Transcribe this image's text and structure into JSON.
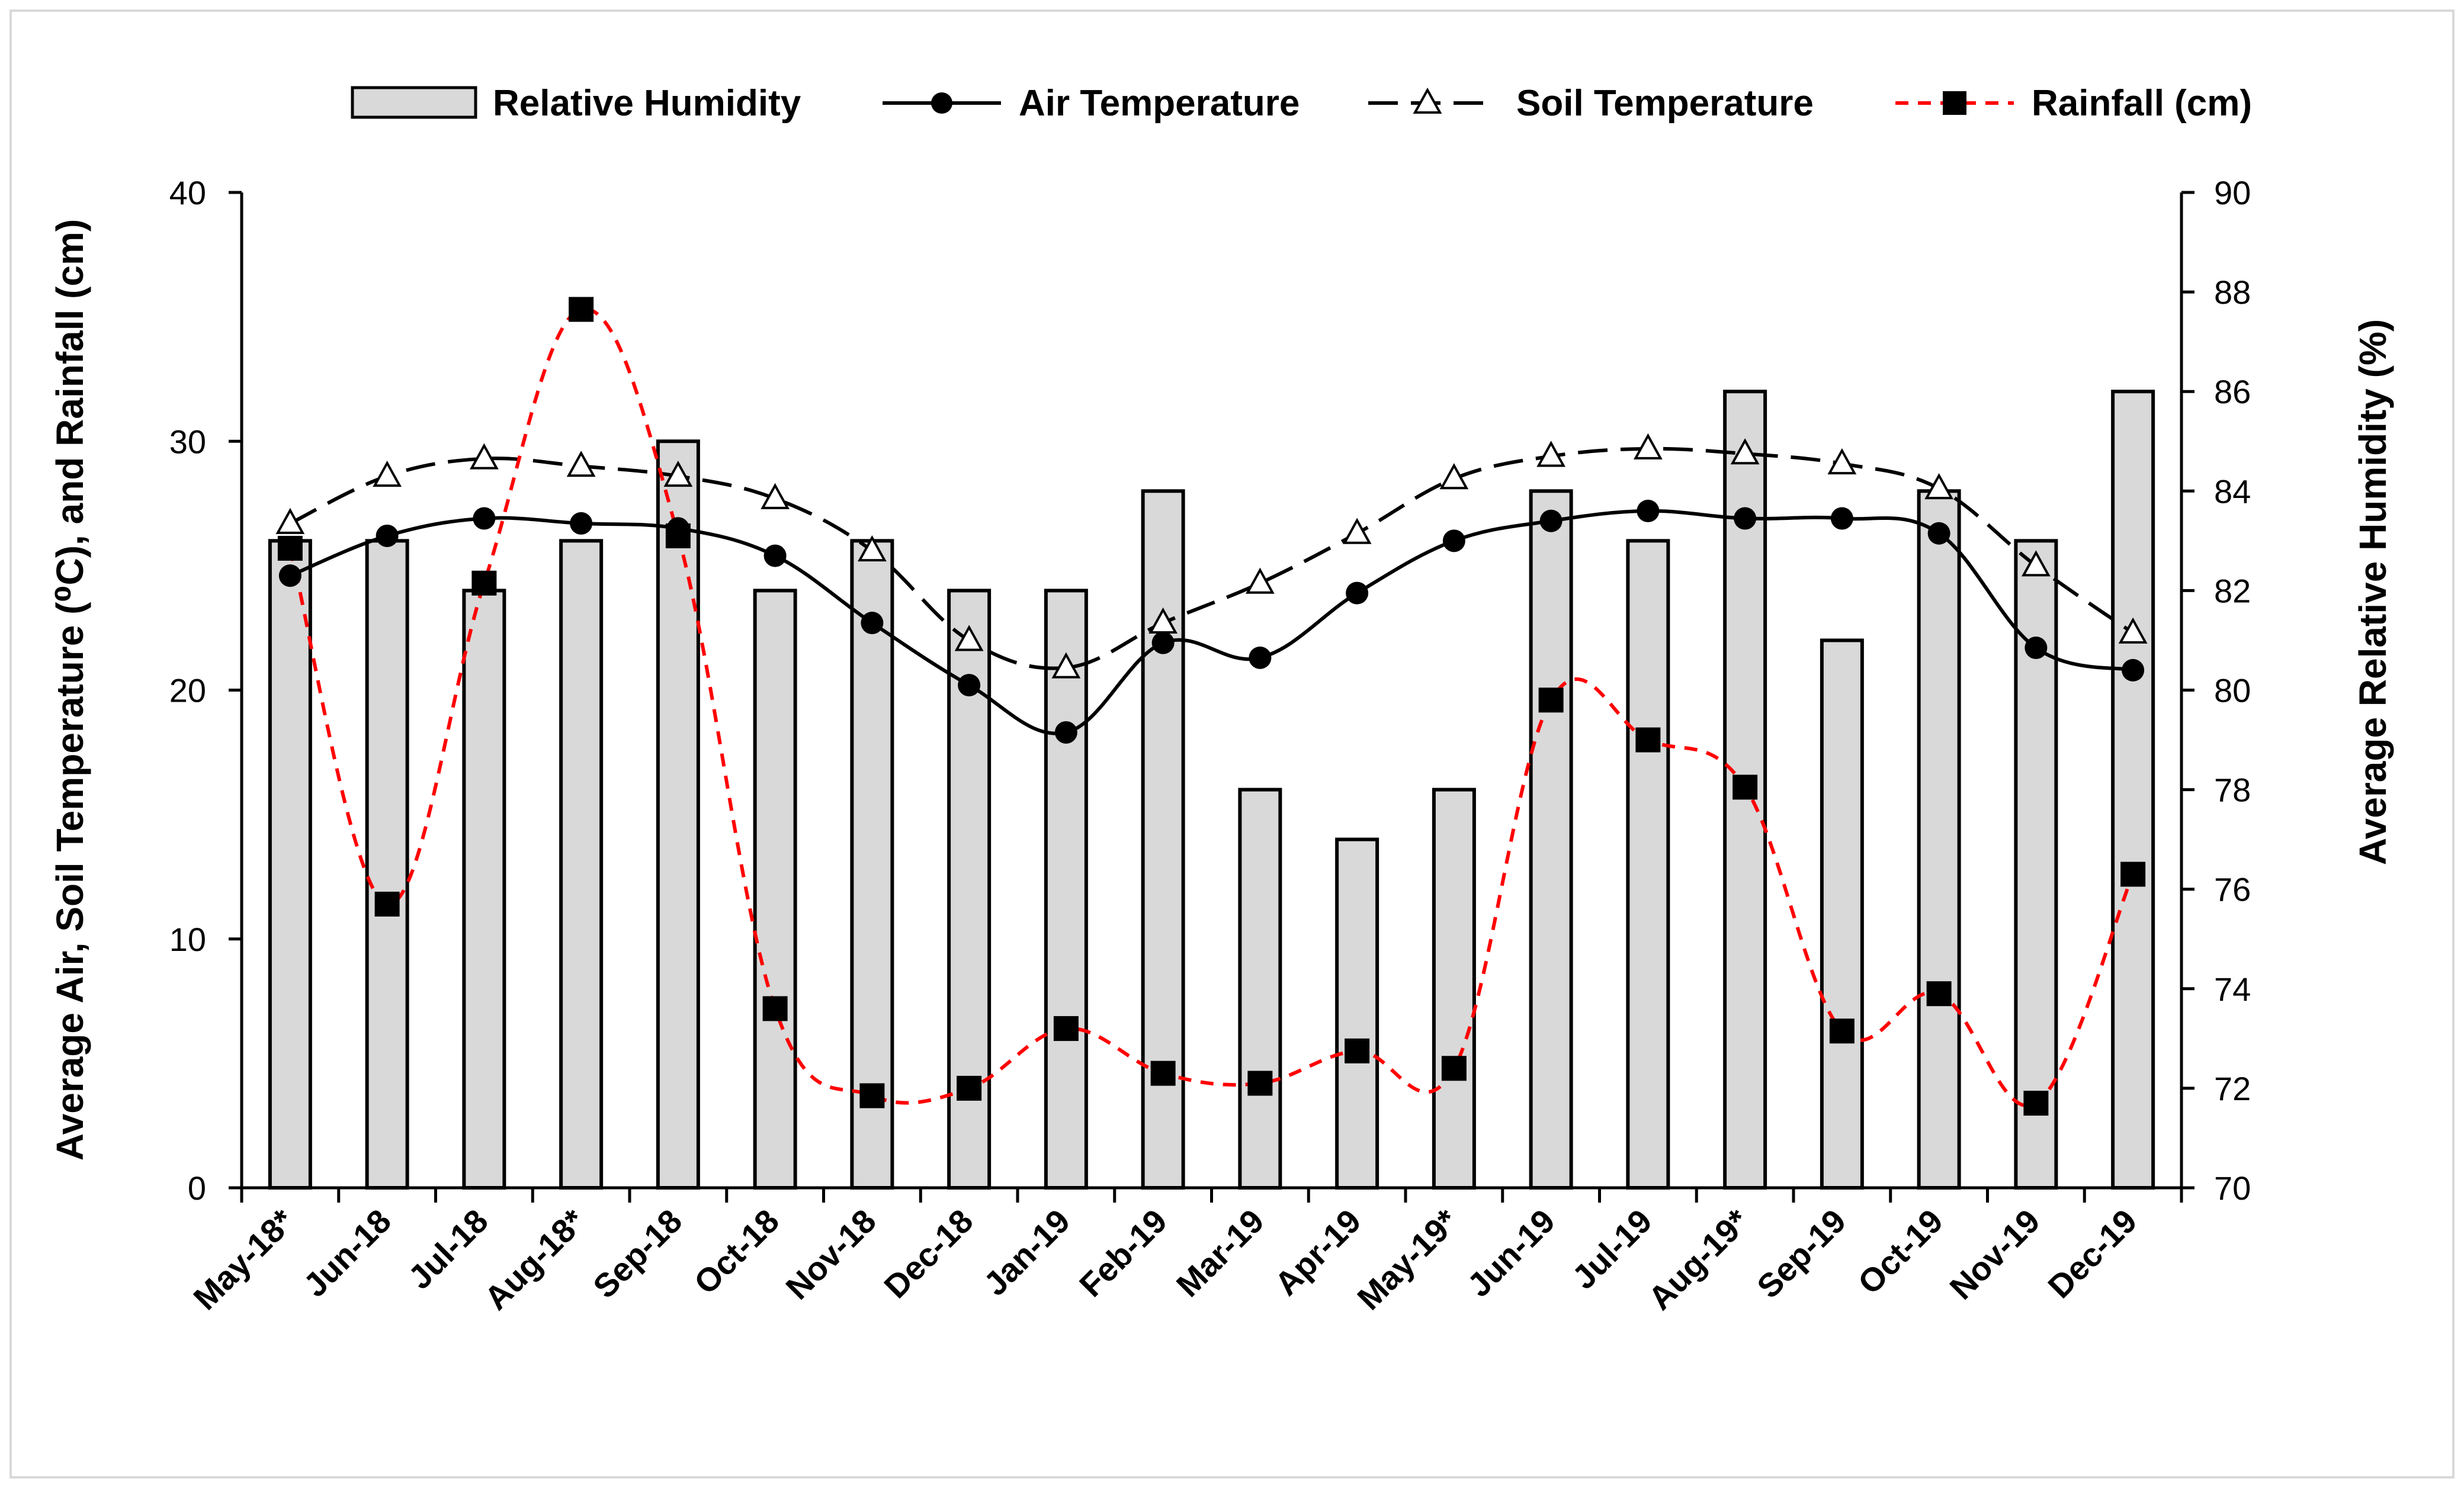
{
  "chart_data": {
    "type": "bar+line",
    "categories": [
      "May-18*",
      "Jun-18",
      "Jul-18",
      "Aug-18*",
      "Sep-18",
      "Oct-18",
      "Nov-18",
      "Dec-18",
      "Jan-19",
      "Feb-19",
      "Mar-19",
      "Apr-19",
      "May-19*",
      "Jun-19",
      "Jul-19",
      "Aug-19*",
      "Sep-19",
      "Oct-19",
      "Nov-19",
      "Dec-19"
    ],
    "series": [
      {
        "name": "Relative Humidity",
        "type": "bar",
        "axis": "right",
        "values": [
          83,
          83,
          82,
          83,
          85,
          82,
          83,
          82,
          82,
          84,
          78,
          77,
          78,
          84,
          83,
          86,
          81,
          84,
          83,
          86
        ]
      },
      {
        "name": "Air Temperature",
        "type": "line",
        "axis": "left",
        "marker": "circle",
        "line_style": "solid",
        "values": [
          24.6,
          26.2,
          26.9,
          26.7,
          26.5,
          25.4,
          22.7,
          20.2,
          18.3,
          21.9,
          21.3,
          23.9,
          26.0,
          26.8,
          27.2,
          26.9,
          26.9,
          26.3,
          21.7,
          20.8
        ]
      },
      {
        "name": "Soil Temperature",
        "type": "line",
        "axis": "left",
        "marker": "triangle-open",
        "line_style": "dashed",
        "values": [
          26.7,
          28.6,
          29.3,
          29.0,
          28.6,
          27.7,
          25.6,
          22.0,
          20.9,
          22.7,
          24.3,
          26.3,
          28.5,
          29.4,
          29.7,
          29.5,
          29.1,
          28.1,
          25.0,
          22.3
        ]
      },
      {
        "name": "Rainfall (cm)",
        "type": "line",
        "axis": "left",
        "marker": "square",
        "line_style": "dashed",
        "values": [
          25.7,
          11.4,
          24.3,
          35.3,
          26.2,
          7.2,
          3.7,
          4.0,
          6.4,
          4.6,
          4.2,
          5.5,
          4.8,
          19.6,
          18.0,
          16.1,
          6.3,
          7.8,
          3.4,
          12.6
        ]
      }
    ],
    "ylabel_left": "Average Air, Soil  Temperature  (⁰C), and  Rainfall (cm)",
    "ylabel_right": "Average Relative Humidity (%)",
    "ylim_left": [
      0,
      40
    ],
    "yticks_left": [
      "0",
      "10",
      "20",
      "30",
      "40"
    ],
    "ylim_right": [
      70,
      90
    ],
    "yticks_right": [
      "70",
      "72",
      "74",
      "76",
      "78",
      "80",
      "82",
      "84",
      "86",
      "88",
      "90"
    ],
    "legend_position": "top",
    "grid": false,
    "colors": {
      "bar_fill": "#d9d9d9",
      "bar_stroke": "#000000",
      "air_line": "#000000",
      "soil_line": "#000000",
      "rainfall_line": "#ff0000",
      "rainfall_marker": "#000000"
    }
  }
}
